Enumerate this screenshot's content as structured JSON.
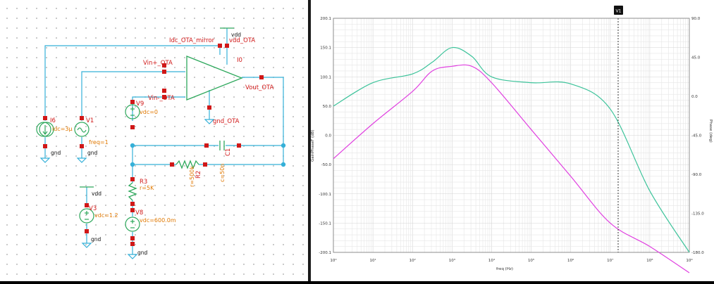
{
  "schematic": {
    "net_labels": {
      "idc_ota_mirror": "Idc_OTA_mirror",
      "vdd_ota": "vdd_OTA",
      "vin_plus": "Vin+_OTA",
      "vin_minus": "Vin-_OTA",
      "vout": "Vout_OTA",
      "gnd_ota": "gnd_OTA"
    },
    "instances": {
      "ota": {
        "name": "I0"
      },
      "i6": {
        "name": "I6",
        "param": "idc=3µ"
      },
      "v1": {
        "name": "V1",
        "param": "freq=1"
      },
      "v9": {
        "name": "V9",
        "param": "vdc=0"
      },
      "c1": {
        "name": "C1",
        "param": "c=50n"
      },
      "r2": {
        "name": "R2",
        "param": "r=500k"
      },
      "r3": {
        "name": "R3",
        "param": "r=5K"
      },
      "v3": {
        "name": "V3",
        "param": "vdc=1.2"
      },
      "v8": {
        "name": "V8",
        "param": "vdc=600.0m"
      }
    },
    "supply_labels": {
      "vdd": "vdd",
      "gnd": "gnd"
    }
  },
  "plot": {
    "marker_label": "V1",
    "left_axis_label": "GainPhaseF (dB)",
    "right_axis_label": "Phase (deg)",
    "x_axis_label": "freq (Hz)",
    "left_ticks": [
      "200.1",
      "150.1",
      "100.1",
      "50.0",
      "0.0",
      "-50.0",
      "-100.1",
      "-150.1",
      "-200.1"
    ],
    "right_ticks": [
      "90.0",
      "45.0",
      "0.0",
      "-45.0",
      "-90.0",
      "-135.0",
      "-180.0"
    ],
    "x_ticks": [
      "10⁰",
      "10¹",
      "10²",
      "10³",
      "10⁴",
      "10⁵",
      "10⁶",
      "10⁷",
      "10⁸",
      "10⁹"
    ],
    "colors": {
      "gain": "#3cc39a",
      "phase": "#e040e0",
      "grid": "#e6e6e6",
      "marker": "#222222"
    }
  },
  "chart_data": {
    "type": "line",
    "xscale": "log",
    "xlim": [
      1,
      1000000000
    ],
    "ylim": [
      -200.1,
      200.1
    ],
    "x": [
      1,
      10,
      100,
      316,
      1000,
      3160,
      10000,
      100000,
      1000000,
      10000000,
      100000000,
      1000000000
    ],
    "series": [
      {
        "values": [
          50,
          90,
          105,
          125,
          150,
          135,
          100,
          90,
          88,
          45,
          -95,
          -200
        ]
      },
      {
        "values": [
          -40,
          20,
          75,
          110,
          118,
          118,
          90,
          10,
          -70,
          -150,
          -190,
          -235
        ]
      }
    ]
  }
}
